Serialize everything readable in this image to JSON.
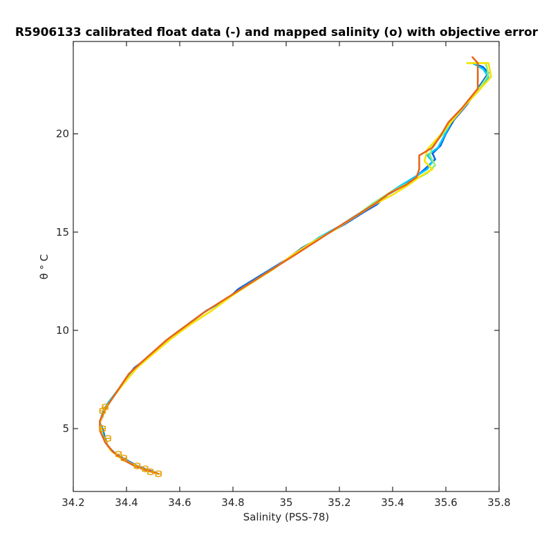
{
  "chart_data": {
    "type": "line",
    "title": "R5906133 calibrated float data (-) and mapped salinity (o) with objective error",
    "xlabel": "Salinity (PSS-78)",
    "ylabel": "θ ° C",
    "xlim": [
      34.2,
      35.8
    ],
    "ylim": [
      1.8,
      24.7
    ],
    "x_ticks": [
      34.2,
      34.4,
      34.6,
      34.8,
      35,
      35.2,
      35.4,
      35.6,
      35.8
    ],
    "x_tick_labels": [
      "34.2",
      "34.4",
      "34.6",
      "34.8",
      "35",
      "35.2",
      "35.4",
      "35.6",
      "35.8"
    ],
    "y_ticks": [
      5,
      10,
      15,
      20
    ],
    "y_tick_labels": [
      "5",
      "10",
      "15",
      "20"
    ],
    "grid": false,
    "series": [
      {
        "color": "#0a5ee8",
        "points": [
          [
            34.52,
            2.7
          ],
          [
            34.48,
            2.9
          ],
          [
            34.44,
            3.1
          ],
          [
            34.4,
            3.4
          ],
          [
            34.36,
            3.7
          ],
          [
            34.33,
            4.1
          ],
          [
            34.32,
            4.5
          ],
          [
            34.31,
            5.0
          ],
          [
            34.3,
            5.3
          ],
          [
            34.31,
            5.6
          ],
          [
            34.32,
            6.0
          ],
          [
            34.34,
            6.4
          ],
          [
            34.37,
            7.0
          ],
          [
            34.4,
            7.6
          ],
          [
            34.43,
            8.1
          ],
          [
            34.48,
            8.6
          ],
          [
            34.53,
            9.2
          ],
          [
            34.58,
            9.8
          ],
          [
            34.64,
            10.4
          ],
          [
            34.7,
            11.0
          ],
          [
            34.78,
            11.6
          ],
          [
            34.82,
            12.1
          ],
          [
            34.88,
            12.6
          ],
          [
            34.94,
            13.1
          ],
          [
            35.0,
            13.6
          ],
          [
            35.06,
            14.2
          ],
          [
            35.14,
            14.8
          ],
          [
            35.22,
            15.4
          ],
          [
            35.29,
            16.0
          ],
          [
            35.34,
            16.4
          ],
          [
            35.38,
            16.9
          ],
          [
            35.42,
            17.2
          ],
          [
            35.47,
            17.6
          ],
          [
            35.52,
            18.2
          ],
          [
            35.56,
            18.7
          ],
          [
            35.55,
            19.0
          ],
          [
            35.58,
            19.4
          ],
          [
            35.6,
            20.0
          ],
          [
            35.63,
            20.7
          ],
          [
            35.68,
            21.5
          ],
          [
            35.72,
            22.3
          ],
          [
            35.76,
            23.1
          ],
          [
            35.74,
            23.4
          ],
          [
            35.7,
            23.6
          ]
        ]
      },
      {
        "color": "#00ccff",
        "points": [
          [
            34.52,
            2.7
          ],
          [
            34.47,
            2.9
          ],
          [
            34.43,
            3.1
          ],
          [
            34.39,
            3.4
          ],
          [
            34.35,
            3.8
          ],
          [
            34.32,
            4.3
          ],
          [
            34.31,
            4.8
          ],
          [
            34.3,
            5.3
          ],
          [
            34.31,
            5.8
          ],
          [
            34.33,
            6.3
          ],
          [
            34.37,
            7.0
          ],
          [
            34.41,
            7.7
          ],
          [
            34.45,
            8.3
          ],
          [
            34.5,
            8.9
          ],
          [
            34.56,
            9.6
          ],
          [
            34.63,
            10.3
          ],
          [
            34.7,
            11.0
          ],
          [
            34.78,
            11.6
          ],
          [
            34.84,
            12.2
          ],
          [
            34.91,
            12.8
          ],
          [
            34.98,
            13.4
          ],
          [
            35.05,
            14.0
          ],
          [
            35.12,
            14.7
          ],
          [
            35.2,
            15.3
          ],
          [
            35.28,
            16.0
          ],
          [
            35.35,
            16.6
          ],
          [
            35.41,
            17.2
          ],
          [
            35.47,
            17.7
          ],
          [
            35.53,
            18.2
          ],
          [
            35.55,
            18.6
          ],
          [
            35.53,
            18.9
          ],
          [
            35.57,
            19.3
          ],
          [
            35.59,
            19.8
          ],
          [
            35.62,
            20.6
          ],
          [
            35.67,
            21.4
          ],
          [
            35.73,
            22.3
          ],
          [
            35.76,
            22.9
          ],
          [
            35.74,
            23.3
          ],
          [
            35.7,
            23.6
          ]
        ]
      },
      {
        "color": "#8ef07a",
        "points": [
          [
            34.52,
            2.7
          ],
          [
            34.47,
            2.9
          ],
          [
            34.42,
            3.2
          ],
          [
            34.38,
            3.5
          ],
          [
            34.34,
            3.9
          ],
          [
            34.31,
            4.6
          ],
          [
            34.3,
            5.3
          ],
          [
            34.32,
            6.0
          ],
          [
            34.35,
            6.6
          ],
          [
            34.39,
            7.3
          ],
          [
            34.44,
            8.1
          ],
          [
            34.5,
            8.8
          ],
          [
            34.57,
            9.6
          ],
          [
            34.64,
            10.3
          ],
          [
            34.72,
            11.0
          ],
          [
            34.8,
            11.8
          ],
          [
            34.88,
            12.5
          ],
          [
            34.95,
            13.1
          ],
          [
            35.02,
            13.8
          ],
          [
            35.1,
            14.5
          ],
          [
            35.18,
            15.1
          ],
          [
            35.26,
            15.8
          ],
          [
            35.33,
            16.5
          ],
          [
            35.4,
            17.1
          ],
          [
            35.46,
            17.5
          ],
          [
            35.53,
            18.0
          ],
          [
            35.56,
            18.4
          ],
          [
            35.54,
            18.9
          ],
          [
            35.55,
            19.4
          ],
          [
            35.59,
            20.0
          ],
          [
            35.63,
            20.8
          ],
          [
            35.68,
            21.6
          ],
          [
            35.73,
            22.4
          ],
          [
            35.76,
            23.0
          ],
          [
            35.75,
            23.6
          ],
          [
            35.68,
            23.6
          ]
        ]
      },
      {
        "color": "#f7e300",
        "points": [
          [
            34.52,
            2.7
          ],
          [
            34.47,
            2.9
          ],
          [
            34.42,
            3.2
          ],
          [
            34.38,
            3.5
          ],
          [
            34.34,
            3.9
          ],
          [
            34.31,
            4.6
          ],
          [
            34.3,
            5.3
          ],
          [
            34.32,
            6.0
          ],
          [
            34.35,
            6.6
          ],
          [
            34.39,
            7.3
          ],
          [
            34.44,
            8.1
          ],
          [
            34.5,
            8.8
          ],
          [
            34.57,
            9.6
          ],
          [
            34.64,
            10.3
          ],
          [
            34.72,
            11.0
          ],
          [
            34.8,
            11.8
          ],
          [
            34.88,
            12.5
          ],
          [
            34.95,
            13.1
          ],
          [
            35.02,
            13.8
          ],
          [
            35.1,
            14.5
          ],
          [
            35.18,
            15.1
          ],
          [
            35.26,
            15.8
          ],
          [
            35.33,
            16.4
          ],
          [
            35.4,
            16.9
          ],
          [
            35.46,
            17.4
          ],
          [
            35.5,
            17.8
          ],
          [
            35.55,
            18.2
          ],
          [
            35.52,
            18.6
          ],
          [
            35.53,
            19.2
          ],
          [
            35.57,
            19.8
          ],
          [
            35.62,
            20.6
          ],
          [
            35.67,
            21.4
          ],
          [
            35.73,
            22.3
          ],
          [
            35.77,
            22.9
          ],
          [
            35.76,
            23.6
          ],
          [
            35.68,
            23.6
          ]
        ]
      },
      {
        "color": "#e8641a",
        "points": [
          [
            34.52,
            2.7
          ],
          [
            34.47,
            2.9
          ],
          [
            34.43,
            3.1
          ],
          [
            34.39,
            3.4
          ],
          [
            34.35,
            3.8
          ],
          [
            34.32,
            4.3
          ],
          [
            34.3,
            4.9
          ],
          [
            34.3,
            5.4
          ],
          [
            34.32,
            6.0
          ],
          [
            34.35,
            6.6
          ],
          [
            34.38,
            7.2
          ],
          [
            34.41,
            7.8
          ],
          [
            34.45,
            8.3
          ],
          [
            34.5,
            8.9
          ],
          [
            34.55,
            9.5
          ],
          [
            34.62,
            10.2
          ],
          [
            34.69,
            10.9
          ],
          [
            34.76,
            11.5
          ],
          [
            34.83,
            12.1
          ],
          [
            34.9,
            12.7
          ],
          [
            34.97,
            13.3
          ],
          [
            35.04,
            13.9
          ],
          [
            35.12,
            14.6
          ],
          [
            35.2,
            15.3
          ],
          [
            35.27,
            15.9
          ],
          [
            35.34,
            16.5
          ],
          [
            35.39,
            17.0
          ],
          [
            35.45,
            17.4
          ],
          [
            35.49,
            17.8
          ],
          [
            35.5,
            18.2
          ],
          [
            35.5,
            18.6
          ],
          [
            35.5,
            18.9
          ],
          [
            35.55,
            19.3
          ],
          [
            35.58,
            19.9
          ],
          [
            35.61,
            20.6
          ],
          [
            35.66,
            21.3
          ],
          [
            35.72,
            22.3
          ],
          [
            35.72,
            23.6
          ],
          [
            35.7,
            23.9
          ]
        ]
      }
    ],
    "mapped_points": {
      "color": "#e8a000",
      "points": [
        [
          34.32,
          6.1
        ],
        [
          34.31,
          5.9
        ],
        [
          34.31,
          5.0
        ],
        [
          34.33,
          4.5
        ],
        [
          34.37,
          3.7
        ],
        [
          34.39,
          3.5
        ],
        [
          34.44,
          3.1
        ],
        [
          34.47,
          2.95
        ],
        [
          34.49,
          2.8
        ],
        [
          34.52,
          2.7
        ]
      ],
      "error_bars": [
        0.01,
        0.01,
        0.01,
        0.01,
        0.01,
        0.01,
        0.01,
        0.01,
        0.01,
        0.01
      ]
    }
  }
}
